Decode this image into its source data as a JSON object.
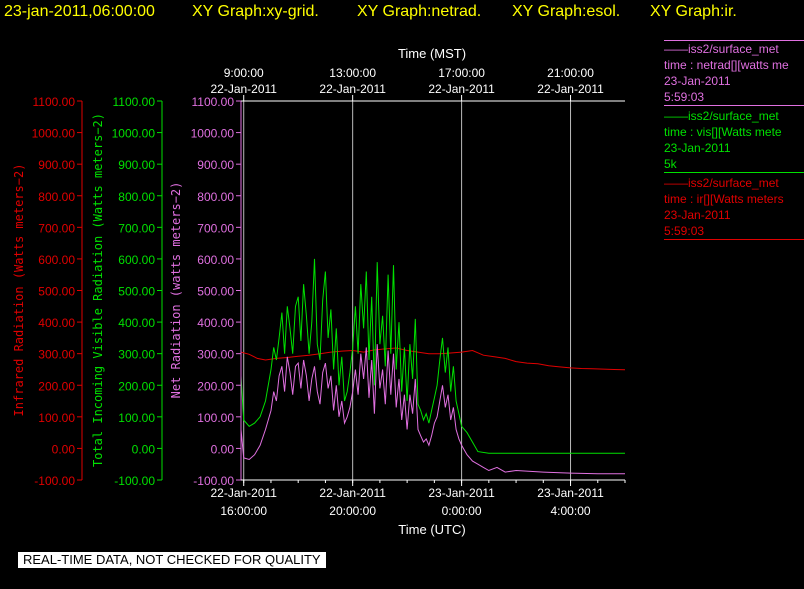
{
  "header": {
    "timestamp": "23-jan-2011,06:00:00",
    "graphs": [
      "XY Graph:xy-grid.",
      "XY Graph:netrad.",
      "XY Graph:esol.",
      "XY Graph:ir."
    ]
  },
  "legend": [
    {
      "line1": "——iss2/surface_met",
      "line2": "time : netrad[][watts me",
      "line3": "23-Jan-2011",
      "line4": "5:59:03",
      "color": "#e070e0"
    },
    {
      "line1": "——iss2/surface_met",
      "line2": "time : vis[][Watts mete",
      "line3": "23-Jan-2011",
      "line4": "5k",
      "color": "#00e000"
    },
    {
      "line1": "——iss2/surface_met",
      "line2": "time : ir[][Watts meters",
      "line3": "23-Jan-2011",
      "line4": "5:59:03",
      "color": "#e00000"
    }
  ],
  "footer": {
    "note": "REAL-TIME DATA, NOT CHECKED FOR QUALITY"
  },
  "chart_data": {
    "type": "line",
    "top_axis": {
      "label": "Time (MST)",
      "ticks": [
        {
          "time": "9:00:00",
          "date": "22-Jan-2011",
          "utc_hour": 16
        },
        {
          "time": "13:00:00",
          "date": "22-Jan-2011",
          "utc_hour": 20
        },
        {
          "time": "17:00:00",
          "date": "22-Jan-2011",
          "utc_hour": 24
        },
        {
          "time": "21:00:00",
          "date": "22-Jan-2011",
          "utc_hour": 28
        }
      ]
    },
    "bottom_axis": {
      "label": "Time (UTC)",
      "ticks": [
        {
          "date": "22-Jan-2011",
          "time": "16:00:00",
          "utc_hour": 16
        },
        {
          "date": "22-Jan-2011",
          "time": "20:00:00",
          "utc_hour": 20
        },
        {
          "date": "23-Jan-2011",
          "time": "0:00:00",
          "utc_hour": 24
        },
        {
          "date": "23-Jan-2011",
          "time": "4:00:00",
          "utc_hour": 28
        }
      ],
      "xlim_utc_hours": [
        15.9,
        30.0
      ]
    },
    "y_axes": [
      {
        "label": "Infrared Radiation (Watts meters−2)",
        "color": "#e00000",
        "ticks": [
          "1100.00",
          "1000.00",
          "900.00",
          "800.00",
          "700.00",
          "600.00",
          "500.00",
          "400.00",
          "300.00",
          "200.00",
          "100.00",
          "0.00",
          "-100.00"
        ]
      },
      {
        "label": "Total Incoming Visible Radiation (Watts meters−2)",
        "color": "#00e000",
        "ticks": [
          "1100.00",
          "1000.00",
          "900.00",
          "800.00",
          "700.00",
          "600.00",
          "500.00",
          "400.00",
          "300.00",
          "200.00",
          "100.00",
          "0.00",
          "-100.00"
        ]
      },
      {
        "label": "Net Radiation (watts meters−2)",
        "color": "#e070e0",
        "ticks": [
          "1100.00",
          "1000.00",
          "900.00",
          "800.00",
          "700.00",
          "600.00",
          "500.00",
          "400.00",
          "300.00",
          "200.00",
          "100.00",
          "0.00",
          "-100.00"
        ]
      }
    ],
    "ylim": [
      -100,
      1100
    ],
    "grid": {
      "vertical": true,
      "horizontal": false
    },
    "series": [
      {
        "name": "ir",
        "color": "#e00000",
        "x": [
          15.9,
          16.2,
          16.5,
          16.8,
          17.2,
          17.6,
          18.0,
          18.4,
          18.8,
          19.2,
          19.6,
          20.0,
          20.4,
          20.8,
          21.2,
          21.6,
          22.0,
          22.4,
          22.8,
          23.2,
          23.6,
          24.0,
          24.4,
          24.8,
          25.2,
          25.6,
          26.0,
          26.4,
          26.8,
          27.2,
          27.6,
          28.0,
          28.4,
          28.8,
          29.2,
          29.6,
          30.0
        ],
        "y": [
          305,
          298,
          285,
          280,
          285,
          288,
          292,
          295,
          300,
          305,
          308,
          310,
          305,
          312,
          315,
          318,
          310,
          305,
          300,
          300,
          302,
          305,
          310,
          295,
          290,
          285,
          275,
          270,
          268,
          262,
          258,
          255,
          253,
          252,
          251,
          250,
          249
        ]
      },
      {
        "name": "vis",
        "color": "#00e000",
        "x": [
          15.9,
          16.0,
          16.2,
          16.4,
          16.6,
          16.8,
          17.0,
          17.1,
          17.2,
          17.3,
          17.4,
          17.5,
          17.6,
          17.7,
          17.8,
          17.9,
          18.0,
          18.1,
          18.2,
          18.3,
          18.4,
          18.5,
          18.6,
          18.7,
          18.8,
          18.9,
          19.0,
          19.1,
          19.2,
          19.3,
          19.4,
          19.5,
          19.6,
          19.7,
          19.8,
          19.9,
          20.0,
          20.1,
          20.2,
          20.3,
          20.4,
          20.5,
          20.6,
          20.7,
          20.8,
          20.9,
          21.0,
          21.1,
          21.2,
          21.3,
          21.4,
          21.5,
          21.6,
          21.7,
          21.8,
          21.9,
          22.0,
          22.1,
          22.2,
          22.3,
          22.4,
          22.5,
          22.6,
          22.7,
          22.8,
          22.9,
          23.0,
          23.1,
          23.2,
          23.3,
          23.4,
          23.5,
          23.6,
          23.7,
          23.8,
          23.9,
          24.0,
          24.2,
          24.4,
          24.6,
          25.0,
          25.5,
          26.0,
          27.0,
          28.0,
          29.0,
          30.0
        ],
        "y": [
          230,
          90,
          70,
          80,
          100,
          150,
          250,
          320,
          280,
          350,
          430,
          300,
          450,
          380,
          300,
          450,
          480,
          340,
          520,
          420,
          300,
          400,
          600,
          330,
          280,
          470,
          560,
          350,
          440,
          250,
          380,
          200,
          290,
          150,
          180,
          240,
          320,
          450,
          300,
          520,
          380,
          560,
          280,
          480,
          200,
          590,
          330,
          420,
          260,
          550,
          300,
          580,
          250,
          400,
          180,
          320,
          150,
          330,
          220,
          410,
          140,
          120,
          90,
          110,
          80,
          120,
          160,
          200,
          280,
          350,
          240,
          320,
          180,
          260,
          150,
          110,
          70,
          50,
          20,
          -10,
          -15,
          -15,
          -15,
          -15,
          -15,
          -15,
          -15
        ]
      },
      {
        "name": "netrad",
        "color": "#e070e0",
        "x": [
          15.9,
          16.0,
          16.2,
          16.4,
          16.6,
          16.8,
          17.0,
          17.1,
          17.2,
          17.3,
          17.4,
          17.5,
          17.6,
          17.7,
          17.8,
          17.9,
          18.0,
          18.1,
          18.2,
          18.3,
          18.4,
          18.5,
          18.6,
          18.7,
          18.8,
          18.9,
          19.0,
          19.1,
          19.2,
          19.3,
          19.4,
          19.5,
          19.6,
          19.7,
          19.8,
          19.9,
          20.0,
          20.1,
          20.2,
          20.3,
          20.4,
          20.5,
          20.6,
          20.7,
          20.8,
          20.9,
          21.0,
          21.1,
          21.2,
          21.3,
          21.4,
          21.5,
          21.6,
          21.7,
          21.8,
          21.9,
          22.0,
          22.1,
          22.2,
          22.3,
          22.4,
          22.5,
          22.6,
          22.7,
          22.8,
          22.9,
          23.0,
          23.1,
          23.2,
          23.3,
          23.4,
          23.5,
          23.6,
          23.7,
          23.8,
          23.9,
          24.0,
          24.2,
          24.4,
          24.6,
          24.8,
          25.0,
          25.3,
          25.6,
          26.0,
          27.0,
          28.0,
          29.0,
          30.0
        ],
        "y": [
          60,
          -30,
          -35,
          -20,
          10,
          60,
          120,
          180,
          150,
          230,
          260,
          180,
          290,
          240,
          170,
          260,
          270,
          190,
          280,
          230,
          150,
          220,
          260,
          180,
          140,
          240,
          270,
          190,
          230,
          120,
          200,
          100,
          150,
          80,
          100,
          130,
          180,
          250,
          170,
          300,
          220,
          320,
          160,
          280,
          110,
          330,
          190,
          250,
          140,
          310,
          170,
          300,
          130,
          220,
          90,
          170,
          60,
          170,
          110,
          220,
          60,
          40,
          20,
          30,
          10,
          40,
          80,
          100,
          150,
          200,
          130,
          170,
          90,
          130,
          60,
          30,
          10,
          -20,
          -40,
          -50,
          -60,
          -70,
          -60,
          -75,
          -70,
          -75,
          -78,
          -80,
          -80
        ]
      }
    ]
  }
}
